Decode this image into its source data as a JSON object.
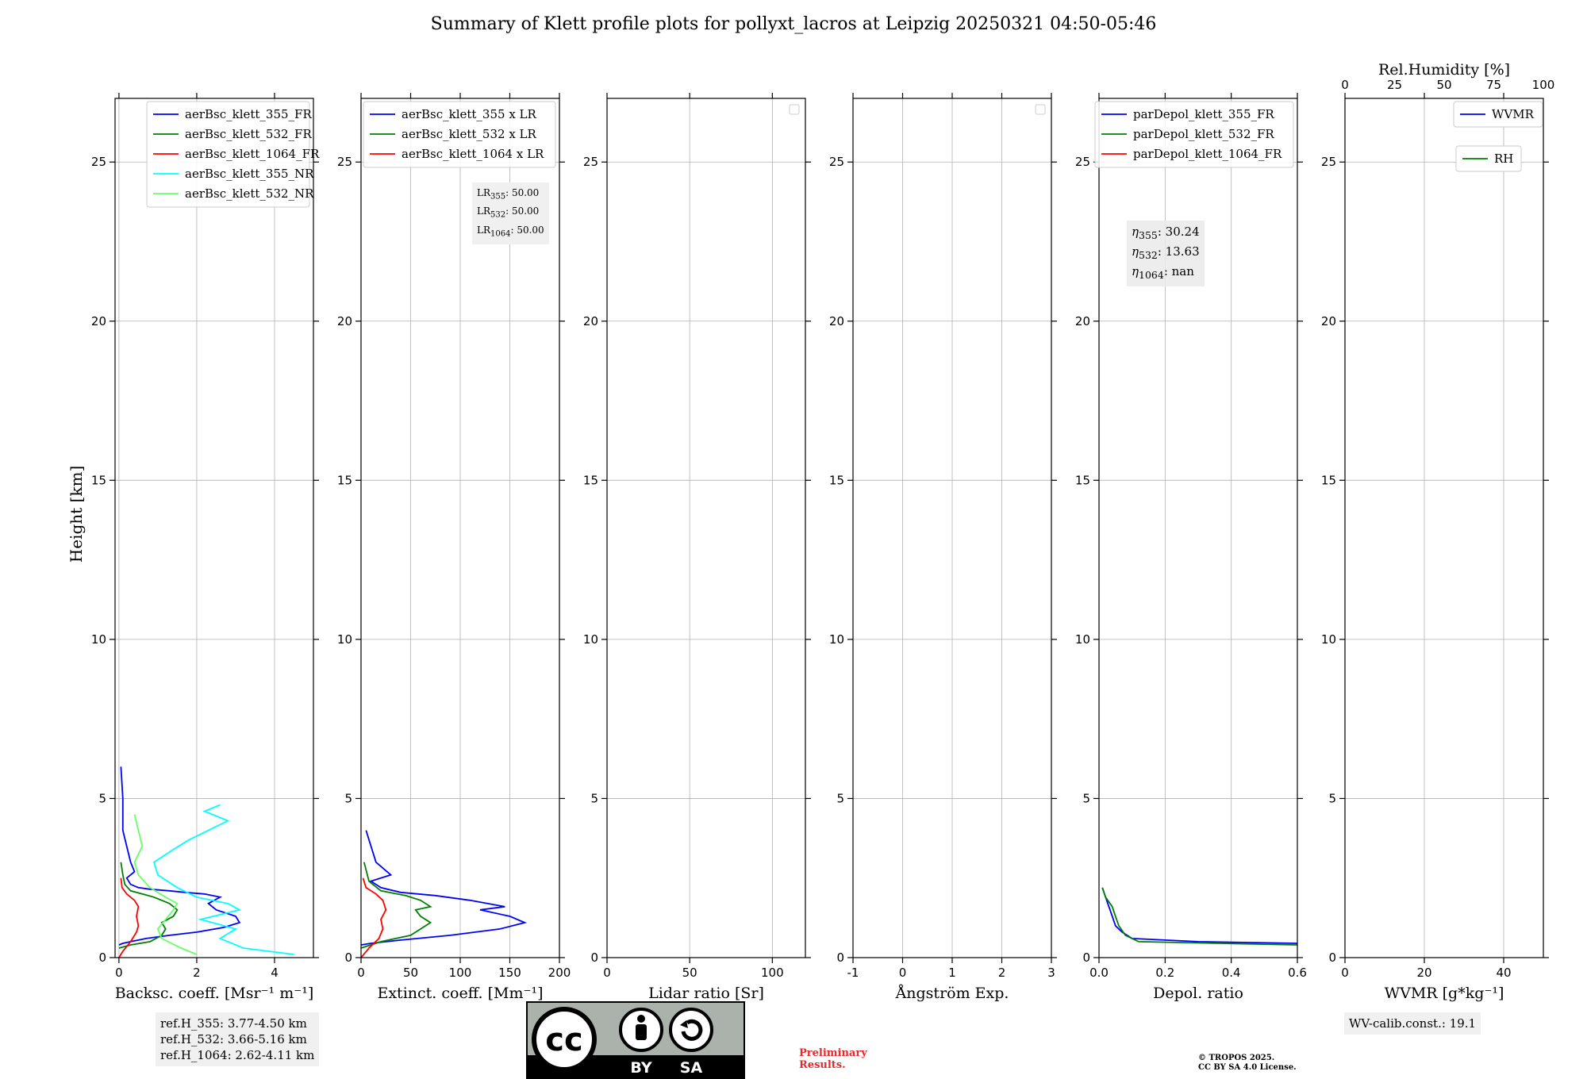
{
  "title": "Summary of Klett profile plots for pollyxt_lacros at Leipzig 20250321 04:50-05:46",
  "colors": {
    "c355": "#0000ff",
    "c532": "#008000",
    "c1064": "#ff0000",
    "c355nr": "#00ffff",
    "c532nr": "#66ff66",
    "rh": "#008000",
    "wvmr": "#0000ff"
  },
  "chart_data": [
    {
      "type": "line",
      "id": "backscatter",
      "xlabel": "Backsc. coeff. [Msr⁻¹ m⁻¹]",
      "ylabel": "Height [km]",
      "xlim": [
        -0.1,
        5.0
      ],
      "ylim": [
        0,
        27
      ],
      "xticks": [
        0,
        2,
        4
      ],
      "yticks": [
        0,
        5,
        10,
        15,
        20,
        25
      ],
      "grid": true,
      "legend": {
        "position": "top-right",
        "entries": [
          "aerBsc_klett_355_FR",
          "aerBsc_klett_532_FR",
          "aerBsc_klett_1064_FR",
          "aerBsc_klett_355_NR",
          "aerBsc_klett_532_NR"
        ]
      },
      "series": [
        {
          "name": "aerBsc_klett_355_FR",
          "color": "#0000ff",
          "x": [
            0.0,
            0.1,
            0.3,
            0.7,
            1.3,
            2.0,
            2.7,
            3.1,
            3.0,
            2.5,
            2.3,
            2.6,
            2.2,
            1.7,
            1.3,
            0.8,
            0.5,
            0.3,
            0.2,
            0.4,
            0.3,
            0.2,
            0.1,
            0.1,
            0.05
          ],
          "y": [
            0.4,
            0.45,
            0.5,
            0.6,
            0.7,
            0.8,
            0.95,
            1.1,
            1.3,
            1.5,
            1.7,
            1.9,
            2.0,
            2.05,
            2.1,
            2.15,
            2.2,
            2.3,
            2.5,
            2.7,
            3.0,
            3.5,
            4.0,
            5.0,
            6.0
          ]
        },
        {
          "name": "aerBsc_klett_532_FR",
          "color": "#008000",
          "x": [
            0.0,
            0.3,
            0.8,
            1.1,
            1.2,
            1.1,
            1.4,
            1.5,
            1.3,
            0.9,
            0.6,
            0.3,
            0.15,
            0.1,
            0.05
          ],
          "y": [
            0.3,
            0.4,
            0.5,
            0.7,
            0.9,
            1.1,
            1.3,
            1.5,
            1.7,
            1.9,
            2.0,
            2.1,
            2.3,
            2.6,
            3.0
          ]
        },
        {
          "name": "aerBsc_klett_1064_FR",
          "color": "#ff0000",
          "x": [
            0.0,
            0.1,
            0.3,
            0.45,
            0.5,
            0.45,
            0.5,
            0.4,
            0.2,
            0.08,
            0.05
          ],
          "y": [
            0.0,
            0.2,
            0.5,
            0.8,
            1.0,
            1.3,
            1.6,
            1.8,
            2.0,
            2.2,
            2.5
          ]
        },
        {
          "name": "aerBsc_klett_355_NR",
          "color": "#00ffff",
          "x": [
            4.5,
            3.2,
            2.6,
            3.0,
            2.1,
            3.1,
            2.8,
            2.0,
            1.5,
            1.0,
            0.9,
            1.4,
            1.8,
            2.3,
            2.8,
            2.2,
            2.6
          ],
          "y": [
            0.1,
            0.3,
            0.6,
            0.9,
            1.2,
            1.5,
            1.7,
            1.9,
            2.2,
            2.6,
            3.0,
            3.4,
            3.7,
            4.0,
            4.3,
            4.6,
            4.8
          ]
        },
        {
          "name": "aerBsc_klett_532_NR",
          "color": "#66ff66",
          "x": [
            2.0,
            1.6,
            1.1,
            1.0,
            1.2,
            1.4,
            1.5,
            1.2,
            0.8,
            0.5,
            0.4,
            0.6,
            0.5,
            0.4
          ],
          "y": [
            0.1,
            0.3,
            0.6,
            0.9,
            1.2,
            1.5,
            1.7,
            1.9,
            2.2,
            2.6,
            3.0,
            3.5,
            4.0,
            4.5
          ]
        }
      ]
    },
    {
      "type": "line",
      "id": "extinction",
      "xlabel": "Extinct. coeff. [Mm⁻¹]",
      "xlim": [
        0,
        200
      ],
      "ylim": [
        0,
        27
      ],
      "xticks": [
        0,
        50,
        100,
        150,
        200
      ],
      "yticks": [
        0,
        5,
        10,
        15,
        20,
        25
      ],
      "grid": true,
      "legend": {
        "position": "top-right",
        "entries": [
          "aerBsc_klett_355 x LR",
          "aerBsc_klett_532 x LR",
          "aerBsc_klett_1064 x LR"
        ]
      },
      "series": [
        {
          "name": "aerBsc_klett_355 x LR",
          "color": "#0000ff",
          "x": [
            0,
            10,
            40,
            90,
            140,
            165,
            150,
            120,
            145,
            110,
            75,
            40,
            20,
            10,
            30,
            15,
            5
          ],
          "y": [
            0.4,
            0.45,
            0.55,
            0.7,
            0.9,
            1.1,
            1.3,
            1.5,
            1.6,
            1.8,
            1.95,
            2.05,
            2.2,
            2.4,
            2.6,
            3.0,
            4.0
          ]
        },
        {
          "name": "aerBsc_klett_532 x LR",
          "color": "#008000",
          "x": [
            0,
            20,
            50,
            70,
            60,
            55,
            70,
            60,
            45,
            20,
            8,
            3
          ],
          "y": [
            0.3,
            0.5,
            0.7,
            1.1,
            1.3,
            1.5,
            1.6,
            1.8,
            1.95,
            2.1,
            2.4,
            3.0
          ]
        },
        {
          "name": "aerBsc_klett_1064 x LR",
          "color": "#ff0000",
          "x": [
            0,
            8,
            18,
            22,
            20,
            25,
            22,
            15,
            5,
            2
          ],
          "y": [
            0.0,
            0.3,
            0.6,
            0.9,
            1.2,
            1.5,
            1.8,
            2.0,
            2.2,
            2.5
          ]
        }
      ]
    },
    {
      "type": "line",
      "id": "lidar-ratio",
      "xlabel": "Lidar ratio [Sr]",
      "xlim": [
        0,
        120
      ],
      "ylim": [
        0,
        27
      ],
      "xticks": [
        0,
        50,
        100
      ],
      "yticks": [
        0,
        5,
        10,
        15,
        20,
        25
      ],
      "grid": true,
      "series": []
    },
    {
      "type": "line",
      "id": "angstrom",
      "xlabel": "Ångström Exp.",
      "xlim": [
        -1,
        3
      ],
      "ylim": [
        0,
        27
      ],
      "xticks": [
        -1,
        0,
        1,
        2,
        3
      ],
      "yticks": [
        0,
        5,
        10,
        15,
        20,
        25
      ],
      "grid": true,
      "series": []
    },
    {
      "type": "line",
      "id": "depol",
      "xlabel": "Depol. ratio",
      "xlim": [
        0,
        0.6
      ],
      "ylim": [
        0,
        27
      ],
      "xticks": [
        0.0,
        0.2,
        0.4,
        0.6
      ],
      "xtick_labels": [
        "0.0",
        "0.2",
        "0.4",
        "0.6"
      ],
      "yticks": [
        0,
        5,
        10,
        15,
        20,
        25
      ],
      "grid": true,
      "legend": {
        "position": "top-right",
        "entries": [
          "parDepol_klett_355_FR",
          "parDepol_klett_532_FR",
          "parDepol_klett_1064_FR"
        ]
      },
      "series": [
        {
          "name": "parDepol_klett_355_FR",
          "color": "#0000ff",
          "x": [
            0.6,
            0.3,
            0.1,
            0.07,
            0.05,
            0.04,
            0.03,
            0.02,
            0.01
          ],
          "y": [
            0.45,
            0.5,
            0.6,
            0.8,
            1.0,
            1.3,
            1.6,
            1.9,
            2.2
          ]
        },
        {
          "name": "parDepol_klett_532_FR",
          "color": "#008000",
          "x": [
            0.6,
            0.12,
            0.08,
            0.06,
            0.05,
            0.04,
            0.02,
            0.01
          ],
          "y": [
            0.4,
            0.5,
            0.7,
            1.0,
            1.3,
            1.6,
            1.9,
            2.2
          ]
        },
        {
          "name": "parDepol_klett_1064_FR",
          "color": "#ff0000",
          "x": [],
          "y": []
        }
      ]
    },
    {
      "type": "line",
      "id": "wvmr",
      "xlabel": "WVMR [g*kg⁻¹]",
      "xlim": [
        0,
        50
      ],
      "ylim": [
        0,
        27
      ],
      "xticks": [
        0,
        20,
        40
      ],
      "yticks": [
        0,
        5,
        10,
        15,
        20,
        25
      ],
      "grid": true,
      "x2label": "Rel.Humidity [%]",
      "x2lim": [
        0,
        100
      ],
      "x2ticks": [
        0,
        25,
        50,
        75,
        100
      ],
      "legend": {
        "position": "top-right",
        "entries": [
          "WVMR",
          "RH"
        ]
      },
      "series": [
        {
          "name": "WVMR",
          "color": "#0000ff",
          "x": [],
          "y": []
        },
        {
          "name": "RH",
          "color": "#008000",
          "x": [],
          "y": []
        }
      ]
    }
  ],
  "annotations": {
    "lr": [
      "LR355: 50.00",
      "LR532: 50.00",
      "LR1064: 50.00"
    ],
    "lr_lines": [
      {
        "base": "LR",
        "sub": "355",
        "val": ": 50.00"
      },
      {
        "base": "LR",
        "sub": "532",
        "val": ": 50.00"
      },
      {
        "base": "LR",
        "sub": "1064",
        "val": ": 50.00"
      }
    ],
    "eta_lines": [
      {
        "base": "η",
        "sub": "355",
        "val": ": 30.24"
      },
      {
        "base": "η",
        "sub": "532",
        "val": ": 13.63"
      },
      {
        "base": "η",
        "sub": "1064",
        "val": ": nan"
      }
    ],
    "refh": [
      "ref.H_355: 3.77-4.50 km",
      "ref.H_532: 3.66-5.16 km",
      "ref.H_1064: 2.62-4.11 km"
    ],
    "wv_calib": "WV-calib.const.: 19.1"
  },
  "footer": {
    "cc_by": "BY",
    "cc_sa": "SA",
    "cc_mark": "cc",
    "preliminary": [
      "Preliminary",
      "Results."
    ],
    "copyright": [
      "© TROPOS 2025.",
      "CC BY SA 4.0 License."
    ]
  }
}
